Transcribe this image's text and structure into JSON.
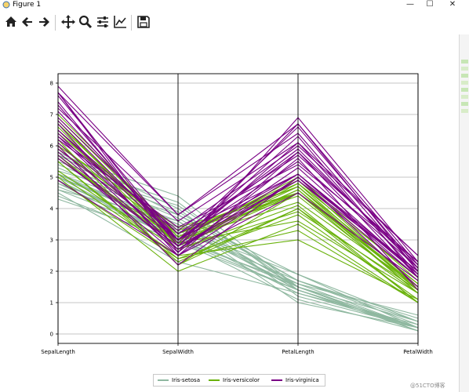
{
  "window": {
    "title": "Figure 1",
    "minimize": "—",
    "maximize": "☐",
    "close": "✕"
  },
  "toolbar": {
    "icons": [
      "home-icon",
      "back-arrow-icon",
      "forward-arrow-icon",
      "pan-icon",
      "zoom-icon",
      "subplots-icon",
      "edit-axis-icon",
      "save-icon"
    ]
  },
  "chart_data": {
    "type": "line",
    "subtype": "parallel-coordinates",
    "categories": [
      "SepalLength",
      "SepalWidth",
      "PetalLength",
      "PetalWidth"
    ],
    "y_ticks": [
      "0",
      "1",
      "2",
      "3",
      "4",
      "5",
      "6",
      "7",
      "8"
    ],
    "ylim": [
      -0.3,
      8.3
    ],
    "grid": true,
    "legend_position": "bottom-center",
    "series": [
      {
        "name": "Iris-setosa",
        "color": "#8fb8a0",
        "rows": [
          [
            4.3,
            3.0,
            1.1,
            0.1
          ],
          [
            4.4,
            2.9,
            1.4,
            0.2
          ],
          [
            4.5,
            2.3,
            1.3,
            0.3
          ],
          [
            4.6,
            3.1,
            1.5,
            0.2
          ],
          [
            4.7,
            3.2,
            1.3,
            0.2
          ],
          [
            4.8,
            3.0,
            1.4,
            0.1
          ],
          [
            4.9,
            3.0,
            1.4,
            0.2
          ],
          [
            4.9,
            3.1,
            1.5,
            0.1
          ],
          [
            5.0,
            3.6,
            1.4,
            0.2
          ],
          [
            5.0,
            3.0,
            1.6,
            0.2
          ],
          [
            5.0,
            3.4,
            1.5,
            0.2
          ],
          [
            5.1,
            3.5,
            1.4,
            0.2
          ],
          [
            5.1,
            3.8,
            1.9,
            0.4
          ],
          [
            5.2,
            4.1,
            1.5,
            0.1
          ],
          [
            5.3,
            3.7,
            1.5,
            0.2
          ],
          [
            5.4,
            3.9,
            1.7,
            0.4
          ],
          [
            5.5,
            4.2,
            1.4,
            0.2
          ],
          [
            5.7,
            4.4,
            1.5,
            0.4
          ],
          [
            5.8,
            4.0,
            1.2,
            0.2
          ],
          [
            5.7,
            3.8,
            1.7,
            0.3
          ],
          [
            5.1,
            3.3,
            1.7,
            0.5
          ],
          [
            4.8,
            3.4,
            1.9,
            0.2
          ],
          [
            5.0,
            3.5,
            1.6,
            0.6
          ],
          [
            4.6,
            3.6,
            1.0,
            0.2
          ]
        ]
      },
      {
        "name": "Iris-versicolor",
        "color": "#6ab20c",
        "rows": [
          [
            7.0,
            3.2,
            4.7,
            1.4
          ],
          [
            6.4,
            3.2,
            4.5,
            1.5
          ],
          [
            6.9,
            3.1,
            4.9,
            1.5
          ],
          [
            5.5,
            2.3,
            4.0,
            1.3
          ],
          [
            6.5,
            2.8,
            4.6,
            1.5
          ],
          [
            5.7,
            2.8,
            4.5,
            1.3
          ],
          [
            6.3,
            3.3,
            4.7,
            1.6
          ],
          [
            4.9,
            2.4,
            3.3,
            1.0
          ],
          [
            6.6,
            2.9,
            4.6,
            1.3
          ],
          [
            5.2,
            2.7,
            3.9,
            1.4
          ],
          [
            5.0,
            2.0,
            3.5,
            1.0
          ],
          [
            5.9,
            3.0,
            4.2,
            1.5
          ],
          [
            6.0,
            2.2,
            4.0,
            1.0
          ],
          [
            6.1,
            2.9,
            4.7,
            1.4
          ],
          [
            5.6,
            2.9,
            3.6,
            1.3
          ],
          [
            6.7,
            3.1,
            4.4,
            1.4
          ],
          [
            5.6,
            3.0,
            4.5,
            1.5
          ],
          [
            5.8,
            2.7,
            4.1,
            1.0
          ],
          [
            6.2,
            2.2,
            4.5,
            1.5
          ],
          [
            5.9,
            3.2,
            4.8,
            1.8
          ],
          [
            6.8,
            2.8,
            4.8,
            1.4
          ],
          [
            6.7,
            3.0,
            5.0,
            1.7
          ],
          [
            5.5,
            2.4,
            3.8,
            1.1
          ],
          [
            6.0,
            3.4,
            4.5,
            1.6
          ],
          [
            5.1,
            2.5,
            3.0,
            1.1
          ]
        ]
      },
      {
        "name": "Iris-virginica",
        "color": "#7a0085",
        "rows": [
          [
            6.3,
            3.3,
            6.0,
            2.5
          ],
          [
            5.8,
            2.7,
            5.1,
            1.9
          ],
          [
            7.1,
            3.0,
            5.9,
            2.1
          ],
          [
            6.5,
            3.0,
            5.8,
            2.2
          ],
          [
            7.6,
            3.0,
            6.6,
            2.1
          ],
          [
            4.9,
            2.5,
            4.5,
            1.7
          ],
          [
            7.3,
            2.9,
            6.3,
            1.8
          ],
          [
            6.7,
            2.5,
            5.8,
            1.8
          ],
          [
            7.2,
            3.6,
            6.1,
            2.5
          ],
          [
            6.4,
            2.7,
            5.3,
            1.9
          ],
          [
            6.8,
            3.0,
            5.5,
            2.1
          ],
          [
            5.7,
            2.5,
            5.0,
            2.0
          ],
          [
            7.7,
            3.8,
            6.7,
            2.2
          ],
          [
            7.7,
            2.6,
            6.9,
            2.3
          ],
          [
            6.0,
            2.2,
            5.0,
            1.5
          ],
          [
            6.9,
            3.2,
            5.7,
            2.3
          ],
          [
            5.6,
            2.8,
            4.9,
            2.0
          ],
          [
            7.7,
            2.8,
            6.7,
            2.0
          ],
          [
            6.3,
            2.7,
            4.9,
            1.8
          ],
          [
            7.9,
            3.8,
            6.4,
            2.0
          ],
          [
            6.2,
            3.4,
            5.4,
            2.3
          ],
          [
            5.9,
            3.0,
            5.1,
            1.8
          ],
          [
            6.1,
            2.6,
            5.6,
            1.4
          ],
          [
            7.4,
            2.8,
            6.1,
            1.9
          ],
          [
            6.5,
            3.2,
            5.1,
            2.0
          ]
        ]
      }
    ]
  },
  "watermark": "@51CTO博客"
}
